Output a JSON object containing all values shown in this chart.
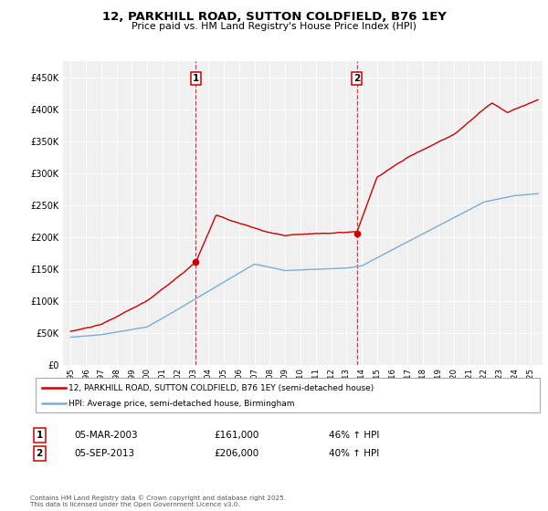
{
  "title": "12, PARKHILL ROAD, SUTTON COLDFIELD, B76 1EY",
  "subtitle": "Price paid vs. HM Land Registry's House Price Index (HPI)",
  "red_label": "12, PARKHILL ROAD, SUTTON COLDFIELD, B76 1EY (semi-detached house)",
  "blue_label": "HPI: Average price, semi-detached house, Birmingham",
  "sale1_date": "05-MAR-2003",
  "sale1_price": "£161,000",
  "sale1_hpi": "46% ↑ HPI",
  "sale2_date": "05-SEP-2013",
  "sale2_price": "£206,000",
  "sale2_hpi": "40% ↑ HPI",
  "footer": "Contains HM Land Registry data © Crown copyright and database right 2025.\nThis data is licensed under the Open Government Licence v3.0.",
  "red_color": "#cc0000",
  "blue_color": "#7aaed4",
  "background_color": "#f0f0f0",
  "ylim": [
    0,
    475000
  ],
  "yticks": [
    0,
    50000,
    100000,
    150000,
    200000,
    250000,
    300000,
    350000,
    400000,
    450000
  ],
  "sale1_x": 2003.17,
  "sale1_y": 161000,
  "sale2_x": 2013.67,
  "sale2_y": 206000,
  "xlim_left": 1994.5,
  "xlim_right": 2025.8
}
